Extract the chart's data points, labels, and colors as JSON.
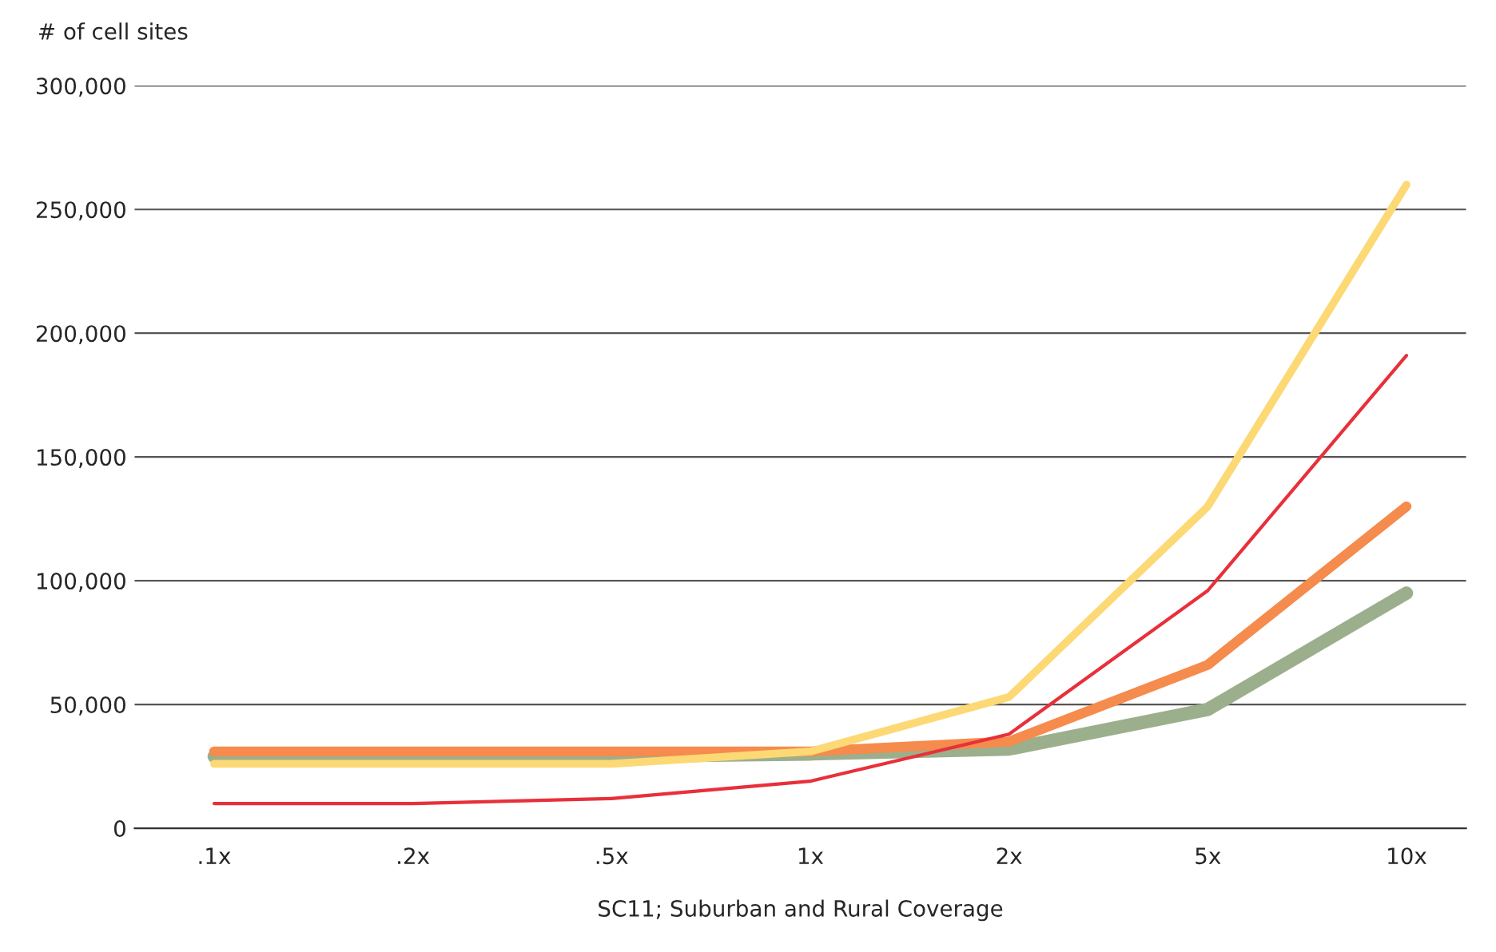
{
  "chart_data": {
    "type": "line",
    "xlabel": "SC11; Suburban and Rural Coverage",
    "ylabel": "# of cell sites",
    "categories": [
      ".1x",
      ".2x",
      ".5x",
      "1x",
      "2x",
      "5x",
      "10x"
    ],
    "series": [
      {
        "color": "#9caf8c",
        "values": [
          29000,
          29000,
          29000,
          30000,
          32000,
          48000,
          95000
        ]
      },
      {
        "color": "#f58b4c",
        "values": [
          31000,
          31000,
          31000,
          31000,
          35000,
          66000,
          130000
        ]
      },
      {
        "color": "#e8303a",
        "values": [
          10000,
          10000,
          12000,
          19000,
          38000,
          96000,
          191000
        ]
      },
      {
        "color": "#fcd975",
        "values": [
          26000,
          26000,
          26000,
          31000,
          53000,
          130000,
          260000
        ]
      }
    ],
    "ylim": [
      0,
      300000
    ],
    "yticks": [
      0,
      {
        "value": 50000,
        "label": "50,000"
      },
      {
        "value": 100000,
        "label": "100,000"
      },
      {
        "value": 150000,
        "label": "150,000"
      },
      {
        "value": 200000,
        "label": "200,000"
      },
      {
        "value": 250000,
        "label": "250,000"
      },
      {
        "value": 300000,
        "label": "300,000"
      }
    ],
    "grid": "y",
    "marker": "none",
    "line_style": "solid"
  }
}
